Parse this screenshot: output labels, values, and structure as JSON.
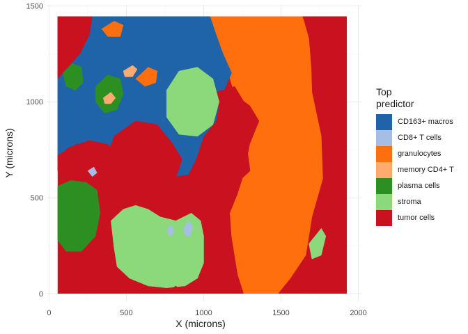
{
  "chart_data": {
    "type": "heatmap",
    "title": "",
    "xlabel": "X (microns)",
    "ylabel": "Y (microns)",
    "xlim": [
      -20,
      2020
    ],
    "ylim": [
      -40,
      1505
    ],
    "x_ticks": [
      0,
      500,
      1000,
      1500,
      2000
    ],
    "y_ticks": [
      0,
      500,
      1000,
      1500
    ],
    "grid": true,
    "legend_position": "right",
    "legend_title": [
      "Top",
      "predictor"
    ],
    "categories": [
      {
        "name": "CD163+ macros",
        "color": "#1f63a8"
      },
      {
        "name": "CD8+ T cells",
        "color": "#a6bee6"
      },
      {
        "name": "granulocytes",
        "color": "#ff6f0e"
      },
      {
        "name": "memory CD4+ T",
        "color": "#ffaa6e"
      },
      {
        "name": "plasma cells",
        "color": "#2c8f22"
      },
      {
        "name": "stroma",
        "color": "#8bd97b"
      },
      {
        "name": "tumor cells",
        "color": "#c9111f"
      }
    ],
    "tissue_extent": {
      "x": [
        55,
        1925
      ],
      "y": [
        0,
        1445
      ]
    },
    "regions": [
      {
        "category": "granulocytes",
        "polygon": [
          [
            1040,
            1445
          ],
          [
            1640,
            1445
          ],
          [
            1690,
            1300
          ],
          [
            1700,
            1050
          ],
          [
            1760,
            820
          ],
          [
            1770,
            600
          ],
          [
            1700,
            400
          ],
          [
            1660,
            200
          ],
          [
            1560,
            80
          ],
          [
            1480,
            0
          ],
          [
            1260,
            0
          ],
          [
            1220,
            100
          ],
          [
            1180,
            300
          ],
          [
            1170,
            420
          ],
          [
            1220,
            520
          ],
          [
            1260,
            620
          ],
          [
            1300,
            780
          ],
          [
            1360,
            900
          ],
          [
            1300,
            980
          ],
          [
            1200,
            1040
          ],
          [
            1140,
            1200
          ],
          [
            1080,
            1350
          ]
        ]
      },
      {
        "category": "CD163+ macros",
        "polygon": [
          [
            55,
            1445
          ],
          [
            1040,
            1445
          ],
          [
            1080,
            1350
          ],
          [
            1120,
            1260
          ],
          [
            1180,
            1150
          ],
          [
            1100,
            1000
          ],
          [
            1080,
            900
          ],
          [
            1000,
            820
          ],
          [
            950,
            700
          ],
          [
            900,
            620
          ],
          [
            700,
            600
          ],
          [
            600,
            620
          ],
          [
            500,
            700
          ],
          [
            380,
            780
          ],
          [
            260,
            800
          ],
          [
            120,
            760
          ],
          [
            55,
            700
          ]
        ]
      },
      {
        "category": "tumor cells",
        "polygon": [
          [
            55,
            1445
          ],
          [
            280,
            1445
          ],
          [
            260,
            1350
          ],
          [
            200,
            1250
          ],
          [
            120,
            1180
          ],
          [
            55,
            1120
          ]
        ]
      },
      {
        "category": "tumor cells",
        "polygon": [
          [
            55,
            720
          ],
          [
            180,
            780
          ],
          [
            280,
            770
          ],
          [
            360,
            740
          ],
          [
            320,
            640
          ],
          [
            250,
            600
          ],
          [
            160,
            580
          ],
          [
            55,
            640
          ]
        ]
      },
      {
        "category": "tumor cells",
        "polygon": [
          [
            420,
            820
          ],
          [
            560,
            900
          ],
          [
            700,
            880
          ],
          [
            800,
            780
          ],
          [
            860,
            700
          ],
          [
            820,
            600
          ],
          [
            700,
            560
          ],
          [
            560,
            580
          ],
          [
            440,
            640
          ],
          [
            380,
            720
          ]
        ]
      },
      {
        "category": "tumor cells",
        "polygon": [
          [
            1060,
            760
          ],
          [
            1200,
            820
          ],
          [
            1280,
            760
          ],
          [
            1300,
            640
          ],
          [
            1220,
            580
          ],
          [
            1120,
            600
          ],
          [
            1060,
            680
          ]
        ]
      },
      {
        "category": "tumor cells",
        "polygon": [
          [
            1640,
            1445
          ],
          [
            1925,
            1445
          ],
          [
            1925,
            0
          ],
          [
            1640,
            0
          ],
          [
            1700,
            200
          ],
          [
            1770,
            400
          ],
          [
            1790,
            650
          ],
          [
            1760,
            900
          ],
          [
            1700,
            1150
          ],
          [
            1680,
            1350
          ]
        ]
      },
      {
        "category": "tumor cells",
        "polygon": [
          [
            1080,
            1050
          ],
          [
            1200,
            1080
          ],
          [
            1260,
            1000
          ],
          [
            1200,
            940
          ],
          [
            1100,
            960
          ]
        ]
      },
      {
        "category": "plasma cells",
        "polygon": [
          [
            55,
            560
          ],
          [
            140,
            590
          ],
          [
            240,
            580
          ],
          [
            310,
            540
          ],
          [
            330,
            420
          ],
          [
            300,
            300
          ],
          [
            210,
            220
          ],
          [
            110,
            220
          ],
          [
            55,
            280
          ]
        ]
      },
      {
        "category": "plasma cells",
        "polygon": [
          [
            90,
            1150
          ],
          [
            150,
            1200
          ],
          [
            210,
            1180
          ],
          [
            220,
            1100
          ],
          [
            170,
            1060
          ],
          [
            110,
            1080
          ]
        ]
      },
      {
        "category": "plasma cells",
        "polygon": [
          [
            300,
            1080
          ],
          [
            380,
            1140
          ],
          [
            460,
            1120
          ],
          [
            480,
            1040
          ],
          [
            440,
            960
          ],
          [
            360,
            940
          ],
          [
            300,
            1000
          ]
        ]
      },
      {
        "category": "stroma",
        "polygon": [
          [
            760,
            1060
          ],
          [
            840,
            1160
          ],
          [
            960,
            1180
          ],
          [
            1060,
            1120
          ],
          [
            1100,
            1000
          ],
          [
            1060,
            880
          ],
          [
            960,
            820
          ],
          [
            840,
            830
          ],
          [
            760,
            920
          ]
        ]
      },
      {
        "category": "stroma",
        "polygon": [
          [
            400,
            380
          ],
          [
            480,
            440
          ],
          [
            560,
            460
          ],
          [
            640,
            440
          ],
          [
            720,
            400
          ],
          [
            820,
            380
          ],
          [
            920,
            420
          ],
          [
            980,
            380
          ],
          [
            1000,
            300
          ],
          [
            1000,
            160
          ],
          [
            960,
            80
          ],
          [
            880,
            40
          ],
          [
            760,
            30
          ],
          [
            640,
            40
          ],
          [
            520,
            80
          ],
          [
            440,
            140
          ],
          [
            420,
            240
          ]
        ]
      },
      {
        "category": "stroma",
        "polygon": [
          [
            560,
            330
          ],
          [
            640,
            350
          ],
          [
            700,
            320
          ],
          [
            660,
            280
          ],
          [
            580,
            290
          ]
        ]
      },
      {
        "category": "stroma",
        "polygon": [
          [
            1680,
            260
          ],
          [
            1760,
            340
          ],
          [
            1790,
            300
          ],
          [
            1760,
            200
          ],
          [
            1700,
            180
          ]
        ]
      },
      {
        "category": "granulocytes",
        "polygon": [
          [
            560,
            1120
          ],
          [
            640,
            1180
          ],
          [
            700,
            1160
          ],
          [
            690,
            1100
          ],
          [
            620,
            1080
          ]
        ]
      },
      {
        "category": "granulocytes",
        "polygon": [
          [
            340,
            1380
          ],
          [
            420,
            1420
          ],
          [
            480,
            1400
          ],
          [
            460,
            1340
          ],
          [
            380,
            1340
          ]
        ]
      },
      {
        "category": "memory CD4+ T",
        "polygon": [
          [
            480,
            1160
          ],
          [
            540,
            1190
          ],
          [
            570,
            1170
          ],
          [
            540,
            1130
          ],
          [
            490,
            1130
          ]
        ]
      },
      {
        "category": "memory CD4+ T",
        "polygon": [
          [
            350,
            1020
          ],
          [
            400,
            1050
          ],
          [
            430,
            1020
          ],
          [
            400,
            990
          ],
          [
            360,
            990
          ]
        ]
      },
      {
        "category": "CD8+ T cells",
        "polygon": [
          [
            250,
            640
          ],
          [
            290,
            660
          ],
          [
            310,
            630
          ],
          [
            280,
            610
          ]
        ]
      },
      {
        "category": "CD8+ T cells",
        "polygon": [
          [
            760,
            330
          ],
          [
            790,
            360
          ],
          [
            810,
            320
          ],
          [
            780,
            300
          ]
        ]
      },
      {
        "category": "CD8+ T cells",
        "polygon": [
          [
            870,
            340
          ],
          [
            900,
            380
          ],
          [
            930,
            350
          ],
          [
            910,
            300
          ],
          [
            880,
            300
          ]
        ]
      },
      {
        "category": "tumor cells",
        "polygon": [
          [
            760,
            10
          ],
          [
            820,
            40
          ],
          [
            860,
            10
          ],
          [
            830,
            -5
          ],
          [
            780,
            -5
          ]
        ]
      }
    ]
  }
}
